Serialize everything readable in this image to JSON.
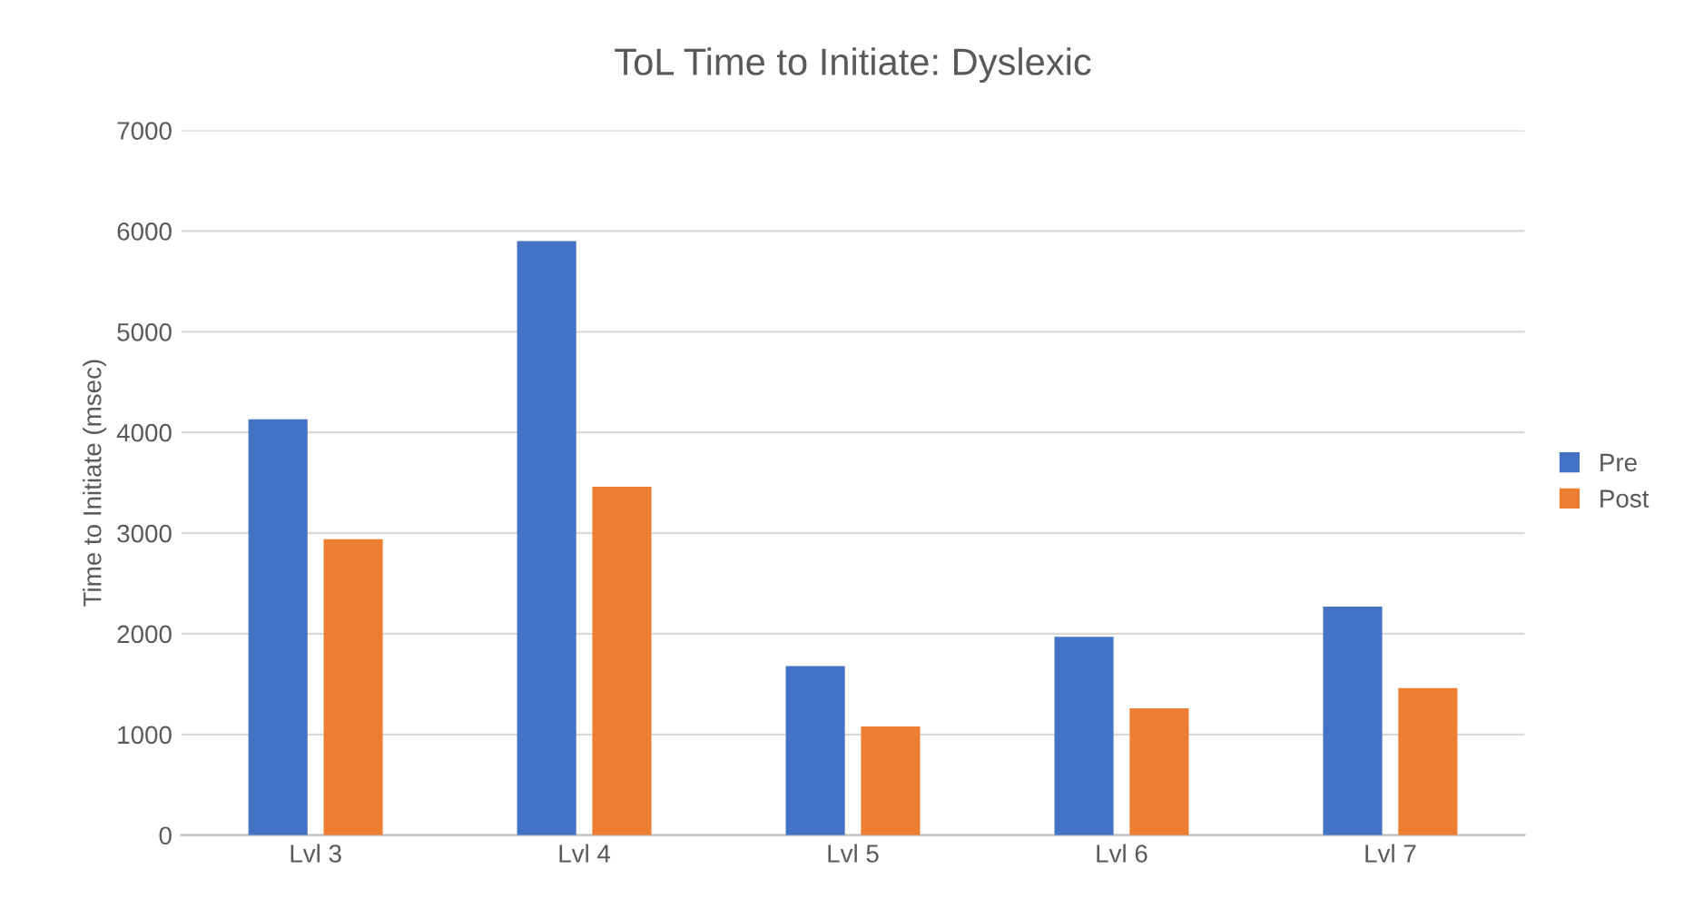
{
  "chart_data": {
    "type": "bar",
    "title": "ToL Time to Initiate: Dyslexic",
    "ylabel": "Time to Initiate (msec)",
    "categories": [
      "Lvl 3",
      "Lvl 4",
      "Lvl 5",
      "Lvl 6",
      "Lvl 7"
    ],
    "series": [
      {
        "name": "Pre",
        "color": "#4472c4",
        "values": [
          4130,
          5900,
          1680,
          1970,
          2270
        ]
      },
      {
        "name": "Post",
        "color": "#ed7d31",
        "values": [
          2940,
          3460,
          1080,
          1260,
          1460
        ]
      }
    ],
    "ylim": [
      0,
      7000
    ],
    "yticks": [
      0,
      1000,
      2000,
      3000,
      4000,
      5000,
      6000,
      7000
    ],
    "grid": "y",
    "legend": "right"
  }
}
